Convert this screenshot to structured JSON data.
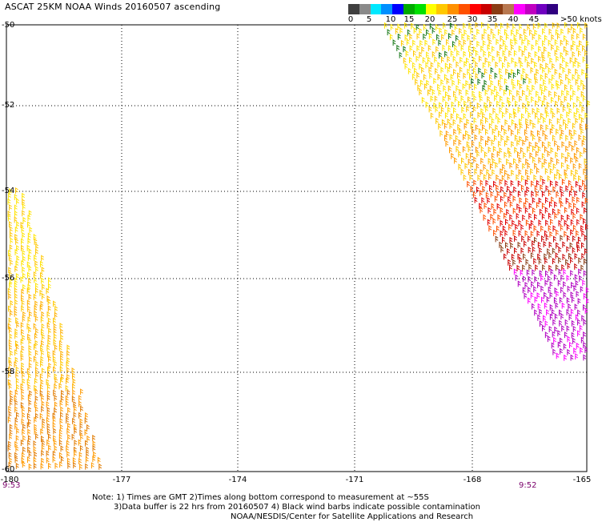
{
  "title": "ASCAT 25KM NOAA Winds 20160507 ascending",
  "colorbar": {
    "colors": [
      "#404040",
      "#8a8a8a",
      "#00e8ff",
      "#0090ff",
      "#0000ff",
      "#00aa00",
      "#00e000",
      "#ffff00",
      "#ffc800",
      "#ff9000",
      "#ff5000",
      "#ff0000",
      "#c80000",
      "#8a3c14",
      "#b87850",
      "#ff00ff",
      "#c000c0",
      "#7000c0",
      "#300080"
    ],
    "labels": [
      "0",
      "5",
      "10",
      "15",
      "20",
      "25",
      "30",
      "35",
      "40",
      "45",
      ">50 knots"
    ]
  },
  "lat_labels": [
    "-50",
    "-52",
    "-54",
    "-56",
    "-58",
    "-60"
  ],
  "lon_labels": [
    "-180",
    "-177",
    "-174",
    "-171",
    "-168",
    "-165"
  ],
  "times": {
    "left": "9:53",
    "right": "9:52"
  },
  "notes": [
    "Note: 1) Times are GMT 2)Times along bottom correspond to measurement at ~55S",
    "3)Data buffer is 22 hrs from 20160507 4) Black wind barbs indicate possible contamination",
    "NOAA/NESDIS/Center for Satellite Applications and Research"
  ]
}
